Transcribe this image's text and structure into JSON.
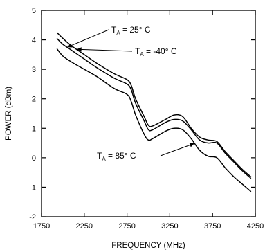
{
  "chart_data": {
    "type": "line",
    "title": "",
    "xlabel": "FREQUENCY (MHz)",
    "ylabel": "POWER (dBm)",
    "xlim": [
      1750,
      4250
    ],
    "ylim": [
      -2,
      5
    ],
    "xticks": [
      1750,
      2250,
      2750,
      3250,
      3750,
      4250
    ],
    "yticks": [
      -2,
      -1,
      0,
      1,
      2,
      3,
      4,
      5
    ],
    "grid": false,
    "legend": "none",
    "series": [
      {
        "name": "TA = -40°C",
        "x": [
          1930,
          2000,
          2100,
          2250,
          2400,
          2600,
          2750,
          2800,
          2850,
          2950,
          3000,
          3050,
          3200,
          3300,
          3400,
          3500,
          3600,
          3700,
          3800,
          3900,
          4000,
          4100,
          4200
        ],
        "y": [
          4.25,
          4.05,
          3.8,
          3.5,
          3.2,
          2.85,
          2.65,
          2.45,
          2.0,
          1.4,
          1.1,
          1.08,
          1.3,
          1.45,
          1.4,
          1.0,
          0.7,
          0.6,
          0.55,
          0.2,
          -0.1,
          -0.4,
          -0.65
        ]
      },
      {
        "name": "TA = 25°C",
        "x": [
          1930,
          2000,
          2100,
          2250,
          2400,
          2600,
          2750,
          2800,
          2850,
          2950,
          3000,
          3050,
          3200,
          3300,
          3400,
          3500,
          3600,
          3700,
          3800,
          3900,
          4000,
          4100,
          4200
        ],
        "y": [
          4.05,
          3.85,
          3.65,
          3.35,
          3.05,
          2.7,
          2.5,
          2.3,
          1.85,
          1.25,
          0.95,
          0.95,
          1.2,
          1.3,
          1.25,
          0.95,
          0.6,
          0.5,
          0.5,
          0.15,
          -0.15,
          -0.45,
          -0.7
        ]
      },
      {
        "name": "TA = 85°C",
        "x": [
          1930,
          2000,
          2100,
          2250,
          2400,
          2600,
          2750,
          2800,
          2850,
          2950,
          3000,
          3050,
          3200,
          3300,
          3400,
          3500,
          3600,
          3700,
          3800,
          3900,
          4000,
          4100,
          4200
        ],
        "y": [
          3.7,
          3.45,
          3.25,
          3.0,
          2.75,
          2.35,
          2.15,
          1.9,
          1.45,
          0.8,
          0.6,
          0.65,
          0.9,
          1.0,
          0.95,
          0.65,
          0.25,
          0.05,
          0.0,
          -0.35,
          -0.65,
          -0.9,
          -1.15
        ]
      }
    ],
    "annotations": [
      {
        "id": "t25",
        "main": "T",
        "sub": "A",
        "rest": " = 25° C",
        "target_series": 1,
        "target_x": 2050
      },
      {
        "id": "tm40",
        "main": "T",
        "sub": "A",
        "rest": " = -40° C",
        "target_series": 0,
        "target_x": 2160
      },
      {
        "id": "t85",
        "main": "T",
        "sub": "A",
        "rest": " = 85° C",
        "target_series": 2,
        "target_x": 3540
      }
    ]
  }
}
